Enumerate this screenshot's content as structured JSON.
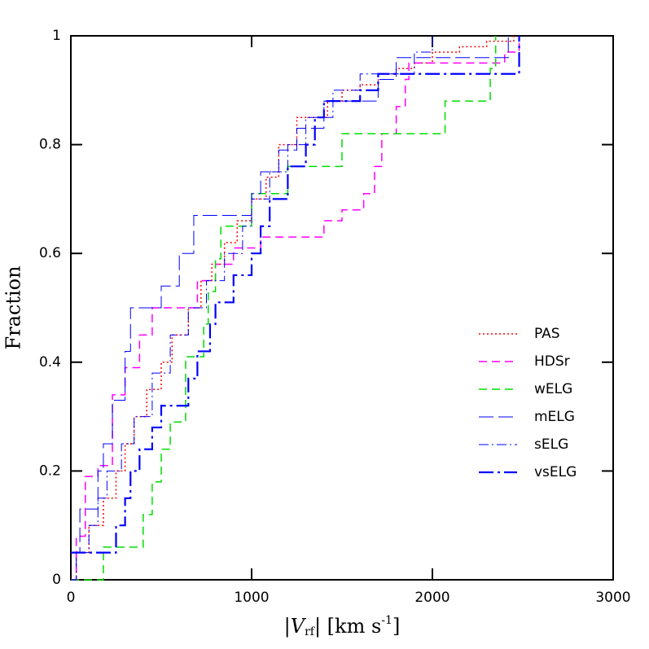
{
  "chart_data": {
    "type": "step",
    "y_label": "Fraction",
    "x_label": {
      "pre": "|V",
      "sub": "rf",
      "mid": "| [km s",
      "sup": "-1",
      "post": "]"
    },
    "xlim": [
      0,
      3000
    ],
    "ylim": [
      0,
      1
    ],
    "xticks": [
      0,
      1000,
      2000,
      3000
    ],
    "yticks": [
      0,
      0.2,
      0.4,
      0.6,
      0.8,
      1
    ],
    "legend": "right",
    "series": [
      {
        "name": "PAS",
        "color": "#ff0000",
        "linestyle": "dotted",
        "linewidth": 1.5,
        "x": [
          0,
          30,
          100,
          180,
          250,
          300,
          350,
          420,
          500,
          560,
          650,
          720,
          780,
          850,
          920,
          1000,
          1080,
          1150,
          1250,
          1350,
          1420,
          1500,
          1600,
          1700,
          1800,
          1900,
          2000,
          2150,
          2300,
          2450
        ],
        "values": [
          0,
          0.05,
          0.1,
          0.15,
          0.2,
          0.25,
          0.3,
          0.35,
          0.4,
          0.45,
          0.5,
          0.55,
          0.58,
          0.62,
          0.66,
          0.7,
          0.74,
          0.8,
          0.85,
          0.85,
          0.88,
          0.9,
          0.91,
          0.93,
          0.94,
          0.95,
          0.97,
          0.98,
          0.99,
          1
        ]
      },
      {
        "name": "HDSr",
        "color": "#ff00ff",
        "linestyle": "dashed",
        "linewidth": 1.5,
        "x": [
          0,
          30,
          80,
          150,
          230,
          300,
          380,
          450,
          700,
          800,
          900,
          1050,
          1400,
          1500,
          1620,
          1680,
          1720,
          1800,
          1850,
          1870,
          2400,
          2480
        ],
        "values": [
          0,
          0.08,
          0.19,
          0.21,
          0.34,
          0.39,
          0.45,
          0.5,
          0.55,
          0.58,
          0.61,
          0.63,
          0.66,
          0.68,
          0.71,
          0.76,
          0.82,
          0.87,
          0.92,
          0.95,
          0.97,
          1
        ]
      },
      {
        "name": "wELG",
        "color": "#00dd00",
        "linestyle": "dashed",
        "linewidth": 1.5,
        "x": [
          0,
          180,
          400,
          450,
          500,
          550,
          635,
          735,
          760,
          800,
          830,
          1000,
          1200,
          1500,
          2070,
          2320,
          2350
        ],
        "values": [
          0,
          0.06,
          0.12,
          0.18,
          0.24,
          0.29,
          0.41,
          0.47,
          0.53,
          0.59,
          0.65,
          0.71,
          0.76,
          0.82,
          0.88,
          0.94,
          1
        ]
      },
      {
        "name": "mELG",
        "color": "#0000ff",
        "linestyle": "longdash",
        "linewidth": 1,
        "x": [
          0,
          50,
          150,
          180,
          230,
          300,
          330,
          500,
          600,
          680,
          1000,
          1050,
          1150,
          1250,
          1400,
          1700,
          1800,
          2420
        ],
        "values": [
          0.05,
          0.13,
          0.2,
          0.25,
          0.33,
          0.42,
          0.5,
          0.54,
          0.6,
          0.67,
          0.71,
          0.75,
          0.79,
          0.83,
          0.88,
          0.92,
          0.96,
          1
        ]
      },
      {
        "name": "sELG",
        "color": "#0000ff",
        "linestyle": "dashdot",
        "linewidth": 1,
        "x": [
          0,
          30,
          100,
          150,
          200,
          280,
          350,
          450,
          550,
          650,
          750,
          850,
          950,
          1000,
          1100,
          1200,
          1300,
          1450,
          1600,
          1900,
          2000
        ],
        "values": [
          0,
          0.05,
          0.1,
          0.15,
          0.2,
          0.25,
          0.3,
          0.38,
          0.45,
          0.5,
          0.55,
          0.6,
          0.65,
          0.7,
          0.75,
          0.8,
          0.85,
          0.9,
          0.93,
          0.97,
          1
        ]
      },
      {
        "name": "vsELG",
        "color": "#0000ff",
        "linestyle": "longdashdot",
        "linewidth": 2.2,
        "x": [
          0,
          250,
          300,
          330,
          380,
          450,
          500,
          650,
          700,
          770,
          800,
          900,
          1000,
          1050,
          1100,
          1200,
          1300,
          1350,
          1400,
          1600,
          1700,
          2430,
          2480
        ],
        "values": [
          0.05,
          0.1,
          0.15,
          0.2,
          0.24,
          0.28,
          0.32,
          0.37,
          0.42,
          0.47,
          0.51,
          0.56,
          0.6,
          0.65,
          0.7,
          0.76,
          0.8,
          0.85,
          0.88,
          0.9,
          0.93,
          0.93,
          1
        ]
      }
    ]
  }
}
